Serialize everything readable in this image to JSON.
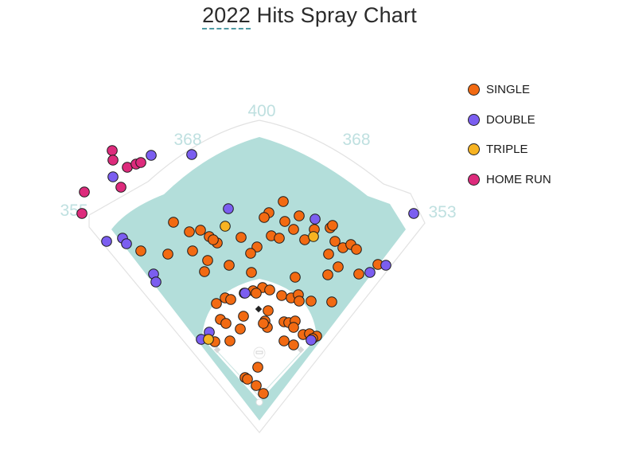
{
  "title": {
    "year": "2022",
    "rest": " Hits Spray Chart"
  },
  "colors": {
    "single": "#f26a12",
    "double": "#7b5ef0",
    "triple": "#f7b322",
    "home_run": "#dd2b7c",
    "field": "#b3deda"
  },
  "legend": [
    {
      "key": "single",
      "label": "SINGLE"
    },
    {
      "key": "double",
      "label": "DOUBLE"
    },
    {
      "key": "triple",
      "label": "TRIPLE"
    },
    {
      "key": "home_run",
      "label": "HOME RUN"
    }
  ],
  "distances": {
    "left_line": "355",
    "left_center": "368",
    "center": "400",
    "right_center": "368",
    "right_line": "353"
  },
  "chart_data": {
    "type": "scatter",
    "title": "2022 Hits Spray Chart",
    "xlabel": "",
    "ylabel": "",
    "series": [
      {
        "name": "SINGLE",
        "points": [
          [
            356,
            253
          ],
          [
            338,
            267
          ],
          [
            332,
            273
          ],
          [
            376,
            271
          ],
          [
            358,
            278
          ],
          [
            218,
            279
          ],
          [
            238,
            291
          ],
          [
            252,
            289
          ],
          [
            263,
            297
          ],
          [
            273,
            305
          ],
          [
            268,
            301
          ],
          [
            341,
            296
          ],
          [
            351,
            299
          ],
          [
            369,
            288
          ],
          [
            383,
            301
          ],
          [
            395,
            288
          ],
          [
            415,
            286
          ],
          [
            418,
            283
          ],
          [
            421,
            303
          ],
          [
            431,
            311
          ],
          [
            441,
            307
          ],
          [
            448,
            313
          ],
          [
            413,
            319
          ],
          [
            323,
            310
          ],
          [
            315,
            318
          ],
          [
            303,
            298
          ],
          [
            242,
            315
          ],
          [
            211,
            319
          ],
          [
            177,
            315
          ],
          [
            261,
            327
          ],
          [
            288,
            333
          ],
          [
            316,
            342
          ],
          [
            257,
            341
          ],
          [
            371,
            348
          ],
          [
            412,
            345
          ],
          [
            425,
            335
          ],
          [
            451,
            344
          ],
          [
            475,
            332
          ],
          [
            330,
            361
          ],
          [
            318,
            365
          ],
          [
            307,
            368
          ],
          [
            322,
            368
          ],
          [
            339,
            364
          ],
          [
            354,
            371
          ],
          [
            366,
            374
          ],
          [
            375,
            370
          ],
          [
            376,
            378
          ],
          [
            391,
            378
          ],
          [
            417,
            379
          ],
          [
            272,
            381
          ],
          [
            283,
            374
          ],
          [
            290,
            376
          ],
          [
            337,
            390
          ],
          [
            277,
            401
          ],
          [
            284,
            406
          ],
          [
            306,
            397
          ],
          [
            333,
            403
          ],
          [
            336,
            411
          ],
          [
            331,
            406
          ],
          [
            357,
            404
          ],
          [
            363,
            405
          ],
          [
            371,
            403
          ],
          [
            369,
            411
          ],
          [
            302,
            413
          ],
          [
            289,
            428
          ],
          [
            381,
            420
          ],
          [
            389,
            419
          ],
          [
            398,
            422
          ],
          [
            393,
            425
          ],
          [
            357,
            428
          ],
          [
            369,
            433
          ],
          [
            270,
            429
          ],
          [
            324,
            461
          ],
          [
            308,
            474
          ],
          [
            311,
            476
          ],
          [
            322,
            484
          ],
          [
            331,
            494
          ]
        ]
      },
      {
        "name": "DOUBLE",
        "points": [
          [
            190,
            195
          ],
          [
            241,
            194
          ],
          [
            142,
            222
          ],
          [
            287,
            262
          ],
          [
            396,
            275
          ],
          [
            520,
            268
          ],
          [
            134,
            303
          ],
          [
            154,
            299
          ],
          [
            159,
            306
          ],
          [
            193,
            344
          ],
          [
            196,
            354
          ],
          [
            485,
            333
          ],
          [
            465,
            342
          ],
          [
            308,
            368
          ],
          [
            263,
            417
          ],
          [
            253,
            426
          ],
          [
            391,
            427
          ]
        ]
      },
      {
        "name": "TRIPLE",
        "points": [
          [
            283,
            284
          ],
          [
            394,
            297
          ],
          [
            262,
            426
          ]
        ]
      },
      {
        "name": "HOME RUN",
        "points": [
          [
            141,
            189
          ],
          [
            142,
            201
          ],
          [
            160,
            210
          ],
          [
            171,
            206
          ],
          [
            177,
            204
          ],
          [
            152,
            235
          ],
          [
            106,
            241
          ],
          [
            103,
            268
          ]
        ]
      }
    ]
  }
}
